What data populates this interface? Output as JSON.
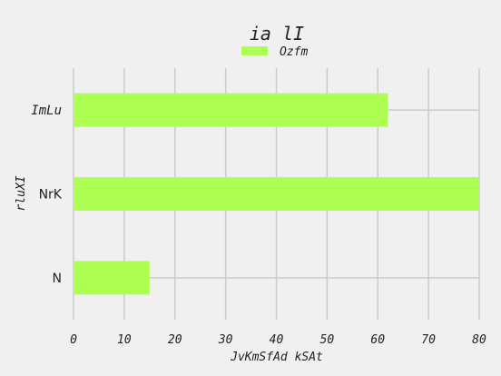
{
  "chart_data": {
    "type": "bar",
    "orientation": "horizontal",
    "title": "ia lI",
    "xlabel": "JvKmSfAd kSAt",
    "ylabel": "rluXI",
    "categories": [
      "ImLu",
      "NrK",
      "N"
    ],
    "category_italic": [
      true,
      false,
      false
    ],
    "series": [
      {
        "name": "Ozfm",
        "color": "#adff52",
        "values": [
          62,
          80,
          15
        ]
      }
    ],
    "xlim": [
      0,
      80
    ],
    "xticks": [
      0,
      10,
      20,
      30,
      40,
      50,
      60,
      70,
      80
    ],
    "grid": true,
    "legend": "top-center",
    "background": "#f0f0f0",
    "grid_color": "#cbcbcb"
  }
}
